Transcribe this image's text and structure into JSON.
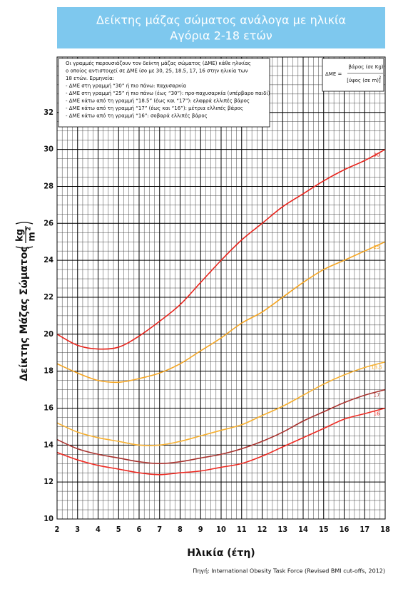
{
  "chart_data": {
    "type": "line",
    "title": "Δείκτης μάζας σώματος ανάλογα με ηλικία",
    "subtitle": "Αγόρια 2-18 ετών",
    "xlabel": "Ηλικία (έτη)",
    "ylabel": "Δείκτης Μάζας Σώματος",
    "ylabel_unit": {
      "numerator": "kg",
      "denominator": "m",
      "exponent": "2"
    },
    "source": "Πηγή: International Obesity Task Force (Revised BMI cut-offs, 2012)",
    "notes": [
      "Οι γραμμές παρουσιάζουν τον δείκτη μάζας σώματος (ΔΜΕ) κάθε ηλικίας",
      "ο οποίος αντιστοιχεί σε ΔΜΕ ίσο με 30, 25, 18.5, 17, 16 στην ηλικία των",
      "18 ετών. Ερμηνεία:",
      "- ΔΜΕ στη γραμμή “30” ή πιο πάνω: παχυσαρκία",
      "- ΔΜΕ στη γραμμή “25” ή πιο πάνω (έως “30”): προ-παχυσαρκία (υπέρβαρο παιδί)",
      "- ΔΜΕ κάτω από τη γραμμή “18.5” (έως και “17”): ελαφρά ελλιπές βάρος",
      "- ΔΜΕ κάτω από τη γραμμή “17” (έως και “16”): μέτρια ελλιπές βάρος",
      "- ΔΜΕ κάτω από τη γραμμή “16”: σοβαρά ελλιπές βάρος"
    ],
    "formula": {
      "lhs": "ΔΜΕ =",
      "numerator": "βάρος (σε Kg)",
      "denominator": "[ύψος (σε m)]",
      "exponent": "2"
    },
    "x": [
      2,
      3,
      4,
      5,
      6,
      7,
      8,
      9,
      10,
      11,
      12,
      13,
      14,
      15,
      16,
      17,
      18
    ],
    "xlim": [
      2,
      18
    ],
    "xticks": [
      2,
      3,
      4,
      5,
      6,
      7,
      8,
      9,
      10,
      11,
      12,
      13,
      14,
      15,
      16,
      17,
      18
    ],
    "ylim": [
      10,
      35
    ],
    "yticks": [
      10,
      12,
      14,
      16,
      18,
      20,
      22,
      24,
      26,
      28,
      30,
      32
    ],
    "grid": true,
    "series": [
      {
        "name": "30",
        "color": "#e8231b",
        "values": [
          20.0,
          19.4,
          19.2,
          19.3,
          19.9,
          20.7,
          21.6,
          22.8,
          24.0,
          25.1,
          26.0,
          26.9,
          27.6,
          28.3,
          28.9,
          29.4,
          30.0
        ]
      },
      {
        "name": "25",
        "color": "#f5a521",
        "values": [
          18.4,
          17.9,
          17.5,
          17.4,
          17.6,
          17.9,
          18.4,
          19.1,
          19.8,
          20.6,
          21.2,
          22.0,
          22.8,
          23.5,
          24.0,
          24.5,
          25.0
        ]
      },
      {
        "name": "18.5",
        "color": "#f7b030",
        "values": [
          15.2,
          14.7,
          14.4,
          14.2,
          14.0,
          14.0,
          14.2,
          14.5,
          14.8,
          15.1,
          15.6,
          16.1,
          16.7,
          17.3,
          17.8,
          18.2,
          18.5
        ]
      },
      {
        "name": "17",
        "color": "#a8322e",
        "values": [
          14.3,
          13.8,
          13.5,
          13.3,
          13.1,
          13.0,
          13.1,
          13.3,
          13.5,
          13.8,
          14.2,
          14.7,
          15.3,
          15.8,
          16.3,
          16.7,
          17.0
        ]
      },
      {
        "name": "16",
        "color": "#ee2a22",
        "values": [
          13.6,
          13.2,
          12.9,
          12.7,
          12.5,
          12.4,
          12.5,
          12.6,
          12.8,
          13.0,
          13.4,
          13.9,
          14.4,
          14.9,
          15.4,
          15.7,
          16.0
        ]
      }
    ]
  }
}
